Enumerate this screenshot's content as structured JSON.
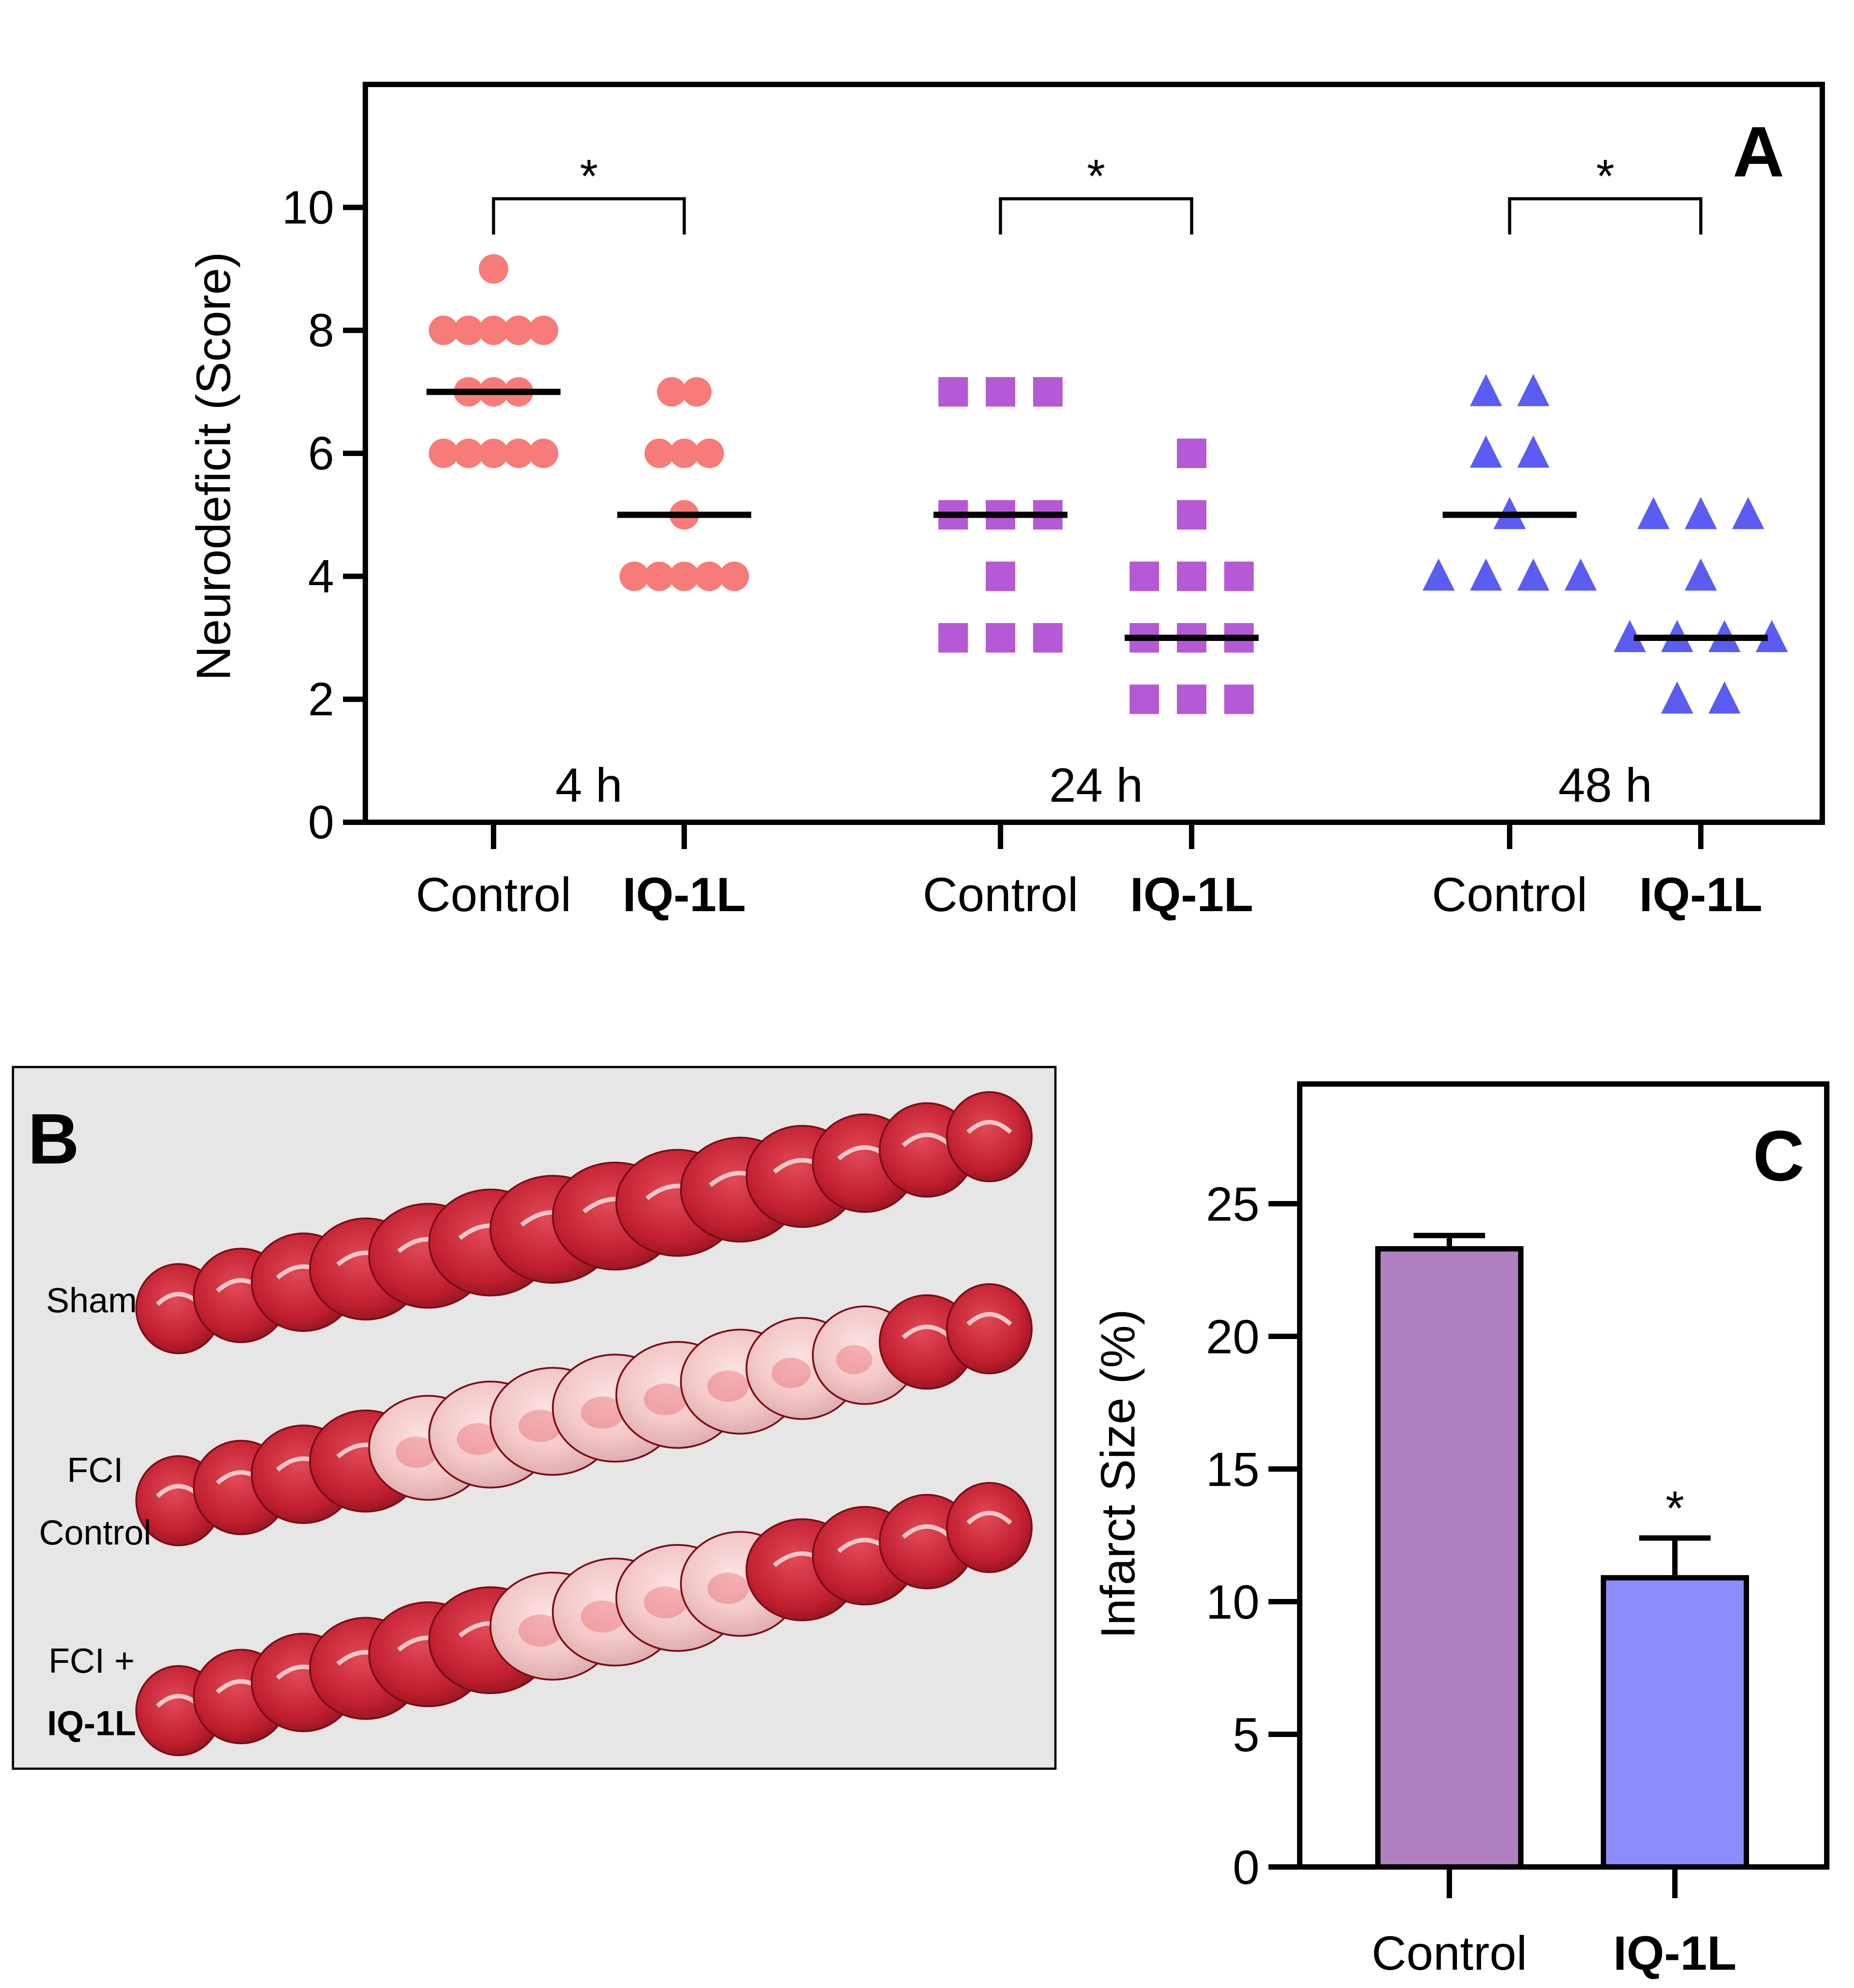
{
  "colors": {
    "h4": "#f77b78",
    "h24": "#b659d6",
    "h48": "#5a5cf2",
    "bar_control": "#b07fc0",
    "bar_iq": "#8c8cff",
    "photo_bg": "#e6e6e6"
  },
  "chart_data": [
    {
      "panel": "A",
      "type": "scatter",
      "ylabel": "Neurodeficit (Score)",
      "ylim": [
        0,
        12
      ],
      "yticks": [
        "0",
        "2",
        "4",
        "6",
        "8",
        "10"
      ],
      "groups": [
        {
          "time": "4 h",
          "marker": "circle",
          "control": {
            "label": "Control",
            "values": [
              9,
              8,
              8,
              8,
              8,
              8,
              7,
              7,
              7,
              6,
              6,
              6,
              6,
              6
            ],
            "median": 7
          },
          "treated": {
            "label": "IQ-1L",
            "values": [
              7,
              7,
              6,
              6,
              6,
              5,
              4,
              4,
              4,
              4,
              4
            ],
            "median": 5
          },
          "significance": "*"
        },
        {
          "time": "24 h",
          "marker": "square",
          "control": {
            "label": "Control",
            "values": [
              7,
              7,
              7,
              5,
              5,
              5,
              4,
              3,
              3,
              3
            ],
            "median": 5
          },
          "treated": {
            "label": "IQ-1L",
            "values": [
              6,
              5,
              4,
              4,
              4,
              3,
              3,
              3,
              2,
              2,
              2
            ],
            "median": 3
          },
          "significance": "*"
        },
        {
          "time": "48 h",
          "marker": "triangle",
          "control": {
            "label": "Control",
            "values": [
              7,
              7,
              6,
              6,
              5,
              4,
              4,
              4,
              4
            ],
            "median": 5
          },
          "treated": {
            "label": "IQ-1L",
            "values": [
              5,
              5,
              5,
              4,
              3,
              3,
              3,
              3,
              2,
              2
            ],
            "median": 3
          },
          "significance": "*"
        }
      ]
    },
    {
      "panel": "C",
      "type": "bar",
      "ylabel": "Infarct Size (%)",
      "ylim": [
        0,
        30
      ],
      "yticks": [
        "0",
        "5",
        "10",
        "15",
        "20",
        "25"
      ],
      "categories": [
        "Control",
        "IQ-1L"
      ],
      "values": [
        23.3,
        10.9
      ],
      "errors": [
        0.5,
        1.5
      ],
      "significance": [
        "",
        "*"
      ]
    }
  ],
  "panel_b": {
    "letter": "B",
    "rows": [
      {
        "label_lines": [
          "Sham"
        ]
      },
      {
        "label_lines": [
          "FCI",
          "Control"
        ]
      },
      {
        "label_lines": [
          "FCI +",
          "IQ-1L"
        ]
      }
    ]
  }
}
